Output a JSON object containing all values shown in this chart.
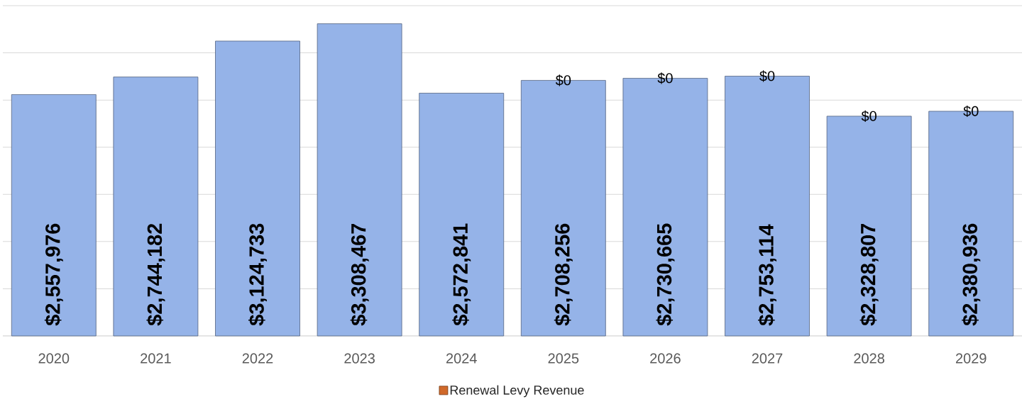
{
  "chart_data": {
    "type": "bar",
    "stacked": true,
    "categories": [
      "2020",
      "2021",
      "2022",
      "2023",
      "2024",
      "2025",
      "2026",
      "2027",
      "2028",
      "2029"
    ],
    "series": [
      {
        "color": "#95b3e8",
        "values": [
          2557976,
          2744182,
          3124733,
          3308467,
          2572841,
          2708256,
          2730665,
          2753114,
          2328807,
          2380936
        ],
        "value_labels": [
          "$2,557,976",
          "$2,744,182",
          "$3,124,733",
          "$3,308,467",
          "$2,572,841",
          "$2,708,256",
          "$2,730,665",
          "$2,753,114",
          "$2,328,807",
          "$2,380,936"
        ]
      },
      {
        "name": "Renewal Levy Revenue",
        "color": "#d0692a",
        "values": [
          null,
          null,
          null,
          null,
          null,
          0,
          0,
          0,
          0,
          0
        ],
        "value_labels": [
          null,
          null,
          null,
          null,
          null,
          "$0",
          "$0",
          "$0",
          "$0",
          "$0"
        ]
      }
    ],
    "ylim": [
      0,
      3500000
    ],
    "yticks": [
      {
        "value": 0,
        "label": null
      },
      {
        "value": 500000,
        "label": null
      },
      {
        "value": 1000000,
        "label": null
      },
      {
        "value": 1500000,
        "label": null
      },
      {
        "value": 2000000,
        "label": null
      },
      {
        "value": 2500000,
        "label": null
      },
      {
        "value": 3000000,
        "label": null
      },
      {
        "value": 3500000,
        "label": null
      }
    ],
    "tick_labels": "x",
    "grid": "y",
    "legend": "bottom"
  }
}
